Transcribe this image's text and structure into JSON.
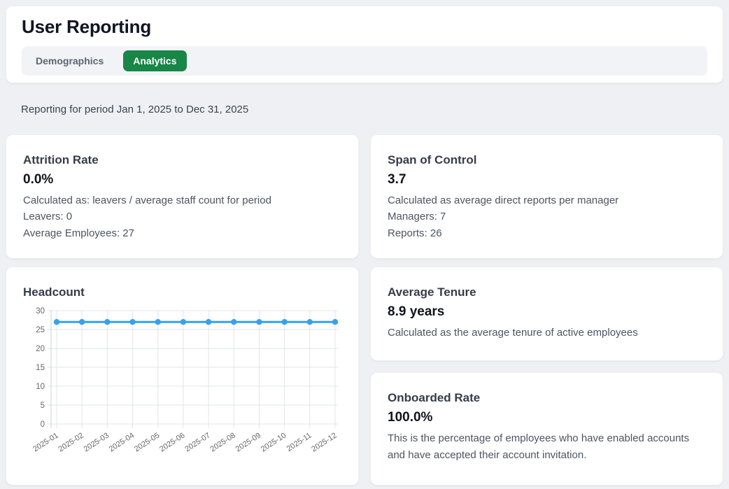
{
  "header": {
    "title": "User Reporting",
    "tabs": [
      {
        "label": "Demographics",
        "active": false
      },
      {
        "label": "Analytics",
        "active": true
      }
    ]
  },
  "period_text": "Reporting for period Jan 1, 2025 to Dec 31, 2025",
  "cards": {
    "attrition": {
      "title": "Attrition Rate",
      "value": "0.0%",
      "lines": [
        "Calculated as: leavers / average staff count for period",
        "Leavers: 0",
        "Average Employees: 27"
      ]
    },
    "span_of_control": {
      "title": "Span of Control",
      "value": "3.7",
      "lines": [
        "Calculated as average direct reports per manager",
        "Managers: 7",
        "Reports: 26"
      ]
    },
    "headcount": {
      "title": "Headcount"
    },
    "average_tenure": {
      "title": "Average Tenure",
      "value": "8.9 years",
      "lines": [
        "Calculated as the average tenure of active employees"
      ]
    },
    "onboarded_rate": {
      "title": "Onboarded Rate",
      "value": "100.0%",
      "lines": [
        "This is the percentage of employees who have enabled accounts and have accepted their account invitation."
      ]
    }
  },
  "chart_data": {
    "type": "line",
    "title": "Headcount",
    "x": [
      "2025-01",
      "2025-02",
      "2025-03",
      "2025-04",
      "2025-05",
      "2025-06",
      "2025-07",
      "2025-08",
      "2025-09",
      "2025-10",
      "2025-11",
      "2025-12"
    ],
    "series": [
      {
        "name": "Headcount",
        "values": [
          27,
          27,
          27,
          27,
          27,
          27,
          27,
          27,
          27,
          27,
          27,
          27
        ]
      }
    ],
    "ylim": [
      0,
      30
    ],
    "ytick_step": 5,
    "grid": true,
    "legend": "none",
    "xlabel": "",
    "ylabel": "",
    "x_label_rotation": -33
  },
  "colors": {
    "accent_green": "#178647",
    "chart_line": "#36a2eb",
    "grid_line": "#e2e4e8",
    "tick_text": "#666666",
    "page_background": "#eef0f3"
  }
}
